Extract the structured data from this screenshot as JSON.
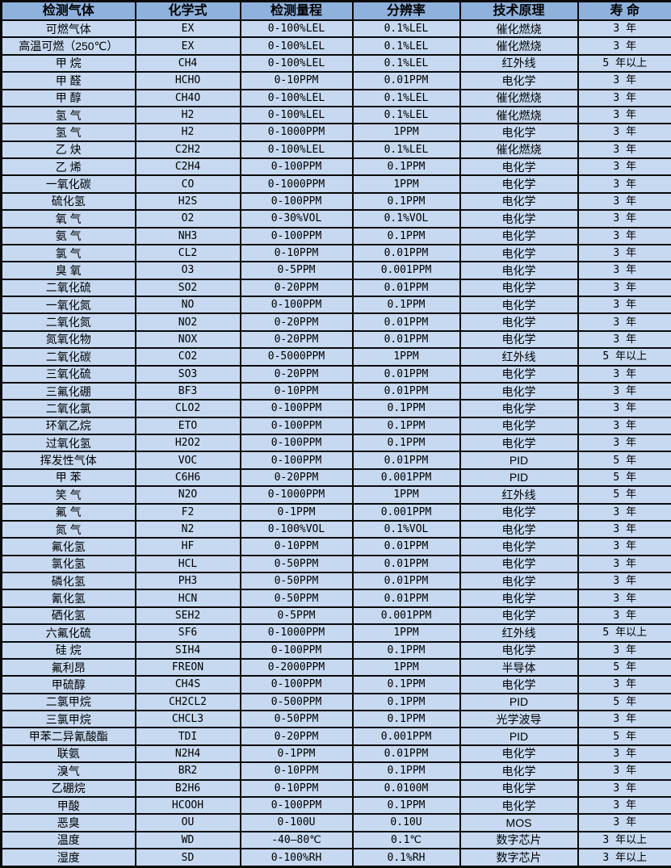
{
  "table": {
    "title_semantic": "gas-detector-sensor-specifications",
    "columns": [
      "检测气体",
      "化学式",
      "检测量程",
      "分辨率",
      "技术原理",
      "寿  命"
    ],
    "rows": [
      [
        "可燃气体",
        "EX",
        "0-100%LEL",
        "0.1%LEL",
        "催化燃烧",
        "3 年"
      ],
      [
        "高温可燃（250℃）",
        "EX",
        "0-100%LEL",
        "0.1%LEL",
        "催化燃烧",
        "3 年"
      ],
      [
        "甲 烷",
        "CH4",
        "0-100%LEL",
        "0.1%LEL",
        "红外线",
        "5 年以上"
      ],
      [
        "甲 醛",
        "HCHO",
        "0-10PPM",
        "0.01PPM",
        "电化学",
        "3 年"
      ],
      [
        "甲 醇",
        "CH4O",
        "0-100%LEL",
        "0.1%LEL",
        "催化燃烧",
        "3 年"
      ],
      [
        "氢 气",
        "H2",
        "0-100%LEL",
        "0.1%LEL",
        "催化燃烧",
        "3 年"
      ],
      [
        "氢 气",
        "H2",
        "0-1000PPM",
        "1PPM",
        "电化学",
        "3 年"
      ],
      [
        "乙 炔",
        "C2H2",
        "0-100%LEL",
        "0.1%LEL",
        "催化燃烧",
        "3 年"
      ],
      [
        "乙 烯",
        "C2H4",
        "0-100PPM",
        "0.1PPM",
        "电化学",
        "3 年"
      ],
      [
        "一氧化碳",
        "CO",
        "0-1000PPM",
        "1PPM",
        "电化学",
        "3 年"
      ],
      [
        "硫化氢",
        "H2S",
        "0-100PPM",
        "0.1PPM",
        "电化学",
        "3 年"
      ],
      [
        "氧 气",
        "O2",
        "0-30%VOL",
        "0.1%VOL",
        "电化学",
        "3 年"
      ],
      [
        "氨 气",
        "NH3",
        "0-100PPM",
        "0.1PPM",
        "电化学",
        "3 年"
      ],
      [
        "氯 气",
        "CL2",
        "0-10PPM",
        "0.01PPM",
        "电化学",
        "3 年"
      ],
      [
        "臭 氧",
        "O3",
        "0-5PPM",
        "0.001PPM",
        "电化学",
        "3 年"
      ],
      [
        "二氧化硫",
        "SO2",
        "0-20PPM",
        "0.01PPM",
        "电化学",
        "3 年"
      ],
      [
        "一氧化氮",
        "NO",
        "0-100PPM",
        "0.1PPM",
        "电化学",
        "3 年"
      ],
      [
        "二氧化氮",
        "NO2",
        "0-20PPM",
        "0.01PPM",
        "电化学",
        "3 年"
      ],
      [
        "氮氧化物",
        "NOX",
        "0-20PPM",
        "0.01PPM",
        "电化学",
        "3 年"
      ],
      [
        "二氧化碳",
        "CO2",
        "0-5000PPM",
        "1PPM",
        "红外线",
        "5 年以上"
      ],
      [
        "三氧化硫",
        "SO3",
        "0-20PPM",
        "0.01PPM",
        "电化学",
        "3 年"
      ],
      [
        "三氟化硼",
        "BF3",
        "0-10PPM",
        "0.01PPM",
        "电化学",
        "3 年"
      ],
      [
        "二氧化氯",
        "CLO2",
        "0-100PPM",
        "0.1PPM",
        "电化学",
        "3 年"
      ],
      [
        "环氧乙烷",
        "ETO",
        "0-100PPM",
        "0.1PPM",
        "电化学",
        "3 年"
      ],
      [
        "过氧化氢",
        "H2O2",
        "0-100PPM",
        "0.1PPM",
        "电化学",
        "3 年"
      ],
      [
        "挥发性气体",
        "VOC",
        "0-100PPM",
        "0.01PPM",
        "PID",
        "5 年"
      ],
      [
        "甲 苯",
        "C6H6",
        "0-20PPM",
        "0.001PPM",
        "PID",
        "5 年"
      ],
      [
        "笑 气",
        "N2O",
        "0-1000PPM",
        "1PPM",
        "红外线",
        "5 年"
      ],
      [
        "氟 气",
        "F2",
        "0-1PPM",
        "0.001PPM",
        "电化学",
        "3 年"
      ],
      [
        "氮 气",
        "N2",
        "0-100%VOL",
        "0.1%VOL",
        "电化学",
        "3 年"
      ],
      [
        "氟化氢",
        "HF",
        "0-10PPM",
        "0.01PPM",
        "电化学",
        "3 年"
      ],
      [
        "氯化氢",
        "HCL",
        "0-50PPM",
        "0.01PPM",
        "电化学",
        "3 年"
      ],
      [
        "磷化氢",
        "PH3",
        "0-50PPM",
        "0.01PPM",
        "电化学",
        "3 年"
      ],
      [
        "氰化氢",
        "HCN",
        "0-50PPM",
        "0.01PPM",
        "电化学",
        "3 年"
      ],
      [
        "硒化氢",
        "SEH2",
        "0-5PPM",
        "0.001PPM",
        "电化学",
        "3 年"
      ],
      [
        "六氟化硫",
        "SF6",
        "0-1000PPM",
        "1PPM",
        "红外线",
        "5 年以上"
      ],
      [
        "硅 烷",
        "SIH4",
        "0-100PPM",
        "0.1PPM",
        "电化学",
        "3 年"
      ],
      [
        "氟利昂",
        "FREON",
        "0-2000PPM",
        "1PPM",
        "半导体",
        "5 年"
      ],
      [
        "甲硫醇",
        "CH4S",
        "0-100PPM",
        "0.1PPM",
        "电化学",
        "3 年"
      ],
      [
        "二氯甲烷",
        "CH2CL2",
        "0-500PPM",
        "0.1PPM",
        "PID",
        "5 年"
      ],
      [
        "三氯甲烷",
        "CHCL3",
        "0-50PPM",
        "0.1PPM",
        "光学波导",
        "3 年"
      ],
      [
        "甲苯二异氰酸酯",
        "TDI",
        "0-20PPM",
        "0.001PPM",
        "PID",
        "5 年"
      ],
      [
        "联氨",
        "N2H4",
        "0-1PPM",
        "0.01PPM",
        "电化学",
        "3 年"
      ],
      [
        "溴气",
        "BR2",
        "0-10PPM",
        "0.1PPM",
        "电化学",
        "3 年"
      ],
      [
        "乙硼烷",
        "B2H6",
        "0-10PPM",
        "0.0100M",
        "电化学",
        "3 年"
      ],
      [
        "甲酸",
        "HCOOH",
        "0-100PPM",
        "0.1PPM",
        "电化学",
        "3 年"
      ],
      [
        "恶臭",
        "OU",
        "0-100U",
        "0.10U",
        "MOS",
        "3 年"
      ],
      [
        "温度",
        "WD",
        "-40—80℃",
        "0.1℃",
        "数字芯片",
        "3 年以上"
      ],
      [
        "湿度",
        "SD",
        "0-100%RH",
        "0.1%RH",
        "数字芯片",
        "3 年以上"
      ]
    ],
    "colors": {
      "header_bg": "#8fb2dd",
      "row_bg": "#c6d9f1",
      "border": "#0a0a0a",
      "text": "#000000"
    }
  }
}
